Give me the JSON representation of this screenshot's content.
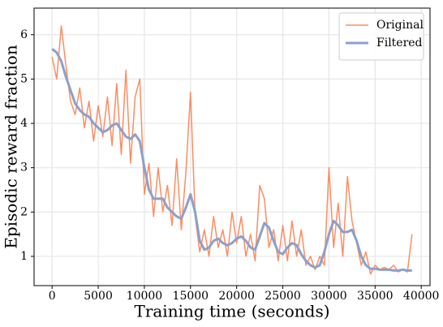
{
  "chart_data": {
    "type": "line",
    "xlabel": "Training time (seconds)",
    "ylabel": "Episodic reward fraction",
    "x": [
      0,
      500,
      1000,
      1500,
      2000,
      2500,
      3000,
      3500,
      4000,
      4500,
      5000,
      5500,
      6000,
      6500,
      7000,
      7500,
      8000,
      8500,
      9000,
      9500,
      10000,
      10500,
      11000,
      11500,
      12000,
      12500,
      13000,
      13500,
      14000,
      14500,
      15000,
      15500,
      16000,
      16500,
      17000,
      17500,
      18000,
      18500,
      19000,
      19500,
      20000,
      20500,
      21000,
      21500,
      22000,
      22500,
      23000,
      23500,
      24000,
      24500,
      25000,
      25500,
      26000,
      26500,
      27000,
      27500,
      28000,
      28500,
      29000,
      29500,
      30000,
      30500,
      31000,
      31500,
      32000,
      32500,
      33000,
      33500,
      34000,
      34500,
      35000,
      35500,
      36000,
      36500,
      37000,
      37500,
      38000,
      38500,
      39000
    ],
    "series": [
      {
        "name": "Original",
        "color": "#fc8d62",
        "width": 1.5,
        "values": [
          5.5,
          5.0,
          6.2,
          5.3,
          4.5,
          4.2,
          4.8,
          3.9,
          4.5,
          3.6,
          4.4,
          3.7,
          4.6,
          3.5,
          4.9,
          3.3,
          5.2,
          3.1,
          4.6,
          5.0,
          2.4,
          3.1,
          1.9,
          3.0,
          2.0,
          2.6,
          1.7,
          3.2,
          1.6,
          2.9,
          4.7,
          1.9,
          1.1,
          1.6,
          1.0,
          1.9,
          1.2,
          1.6,
          1.0,
          2.0,
          1.3,
          1.9,
          1.0,
          1.5,
          0.9,
          2.6,
          2.3,
          1.2,
          1.6,
          0.9,
          1.7,
          0.9,
          1.8,
          1.0,
          1.6,
          0.8,
          1.0,
          0.7,
          1.0,
          0.8,
          3.0,
          1.2,
          2.2,
          1.0,
          2.8,
          1.8,
          1.3,
          0.8,
          1.1,
          0.6,
          0.8,
          0.7,
          0.75,
          0.7,
          0.8,
          0.65,
          0.7,
          0.65,
          1.5
        ]
      },
      {
        "name": "Filtered",
        "color": "#8da0cb",
        "width": 3,
        "values": [
          5.68,
          5.6,
          5.4,
          5.05,
          4.75,
          4.45,
          4.3,
          4.2,
          4.15,
          4.0,
          3.9,
          3.8,
          3.85,
          3.95,
          4.0,
          3.85,
          3.7,
          3.65,
          3.75,
          3.6,
          3.0,
          2.5,
          2.3,
          2.3,
          2.3,
          2.1,
          2.0,
          1.9,
          1.85,
          2.1,
          2.4,
          2.0,
          1.35,
          1.15,
          1.2,
          1.35,
          1.4,
          1.3,
          1.25,
          1.3,
          1.4,
          1.45,
          1.35,
          1.2,
          1.15,
          1.45,
          1.75,
          1.65,
          1.35,
          1.1,
          1.05,
          1.2,
          1.3,
          1.25,
          1.05,
          0.9,
          0.8,
          0.75,
          0.8,
          1.1,
          1.5,
          1.8,
          1.7,
          1.55,
          1.55,
          1.6,
          1.35,
          1.0,
          0.8,
          0.72,
          0.72,
          0.7,
          0.7,
          0.7,
          0.68,
          0.68,
          0.7,
          0.68,
          0.68
        ]
      }
    ],
    "xlim": [
      -1950,
      40950
    ],
    "xticks": [
      0,
      5000,
      10000,
      15000,
      20000,
      25000,
      30000,
      35000,
      40000
    ],
    "ylim": [
      0.34,
      6.6
    ],
    "yticks": [
      1,
      2,
      3,
      4,
      5,
      6
    ],
    "grid": true,
    "legend": "upper right"
  }
}
